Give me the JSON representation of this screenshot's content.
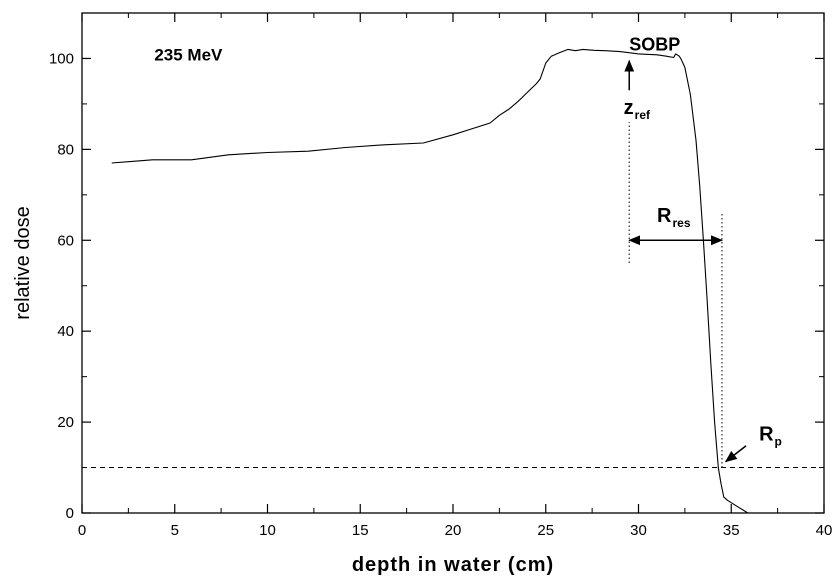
{
  "chart_data": {
    "type": "line",
    "title": "",
    "xlabel": "depth in water (cm)",
    "ylabel": "relative dose",
    "xlim": [
      0,
      40
    ],
    "ylim": [
      0,
      110
    ],
    "x_major_ticks": [
      0,
      5,
      10,
      15,
      20,
      25,
      30,
      35,
      40
    ],
    "x_tick_labels": [
      "0",
      "5",
      "10",
      "15",
      "20",
      "25",
      "30",
      "35",
      "40"
    ],
    "y_major_ticks": [
      0,
      20,
      40,
      60,
      80,
      100
    ],
    "y_tick_labels": [
      "0",
      "20",
      "40",
      "60",
      "80",
      "100"
    ],
    "grid": false,
    "series": [
      {
        "color": "#000000",
        "style": "solid",
        "x": [
          1.6,
          3.8,
          5.9,
          7.9,
          10.0,
          12.2,
          14.2,
          16.3,
          18.4,
          20.0,
          21.0,
          22.0,
          22.5,
          23.0,
          23.5,
          24.0,
          24.5,
          24.7,
          25.0,
          25.3,
          25.7,
          26.2,
          26.6,
          27.0,
          27.6,
          28.2,
          29.0,
          30.0,
          31.0,
          31.5,
          31.9,
          32.0,
          32.2,
          32.3,
          32.5,
          32.8,
          33.1,
          33.3,
          33.5,
          33.7,
          33.9,
          34.1,
          34.3,
          34.45,
          34.6,
          34.8,
          35.3,
          35.9
        ],
        "y": [
          77.0,
          77.7,
          77.7,
          78.8,
          79.3,
          79.6,
          80.4,
          81.0,
          81.4,
          83.2,
          84.5,
          85.8,
          87.5,
          88.8,
          90.5,
          92.5,
          94.5,
          95.5,
          99.0,
          100.5,
          101.2,
          102.0,
          101.7,
          102.0,
          101.8,
          101.7,
          101.5,
          101.0,
          100.8,
          100.5,
          100.2,
          101.0,
          100.5,
          99.8,
          98.0,
          92.0,
          82.0,
          72.0,
          60.0,
          47.0,
          33.0,
          20.0,
          10.0,
          6.5,
          3.5,
          2.8,
          1.5,
          0.0
        ]
      },
      {
        "color": "#000000",
        "style": "dashed",
        "x": [
          0,
          40
        ],
        "y": [
          10,
          10
        ]
      }
    ],
    "annotations": [
      {
        "text": "235 MeV",
        "x": 3.9,
        "y": 99.5
      },
      {
        "text": "SOBP",
        "x": 29.5,
        "y": 101.8
      },
      {
        "text": "z",
        "subscript": "ref",
        "x": 29.2,
        "y": 87.8
      },
      {
        "text": "R",
        "subscript": "res",
        "x": 31.0,
        "y": 64.0
      },
      {
        "text": "R",
        "subscript": "p",
        "x": 36.5,
        "y": 16.0
      }
    ],
    "reference_lines": [
      {
        "style": "dotted",
        "x": 29.5,
        "y_from": 55,
        "y_to": 86
      },
      {
        "style": "dotted",
        "x": 34.5,
        "y_from": 10,
        "y_to": 66
      }
    ],
    "arrows": [
      {
        "from": [
          29.5,
          93
        ],
        "to": [
          29.5,
          99.5
        ],
        "label": "z_ref"
      },
      {
        "from": [
          29.5,
          60
        ],
        "to": [
          34.5,
          60
        ],
        "double": true,
        "label": "R_res"
      },
      {
        "from": [
          35.8,
          14.8
        ],
        "to": [
          34.7,
          11.3
        ],
        "label": "R_p"
      }
    ]
  }
}
